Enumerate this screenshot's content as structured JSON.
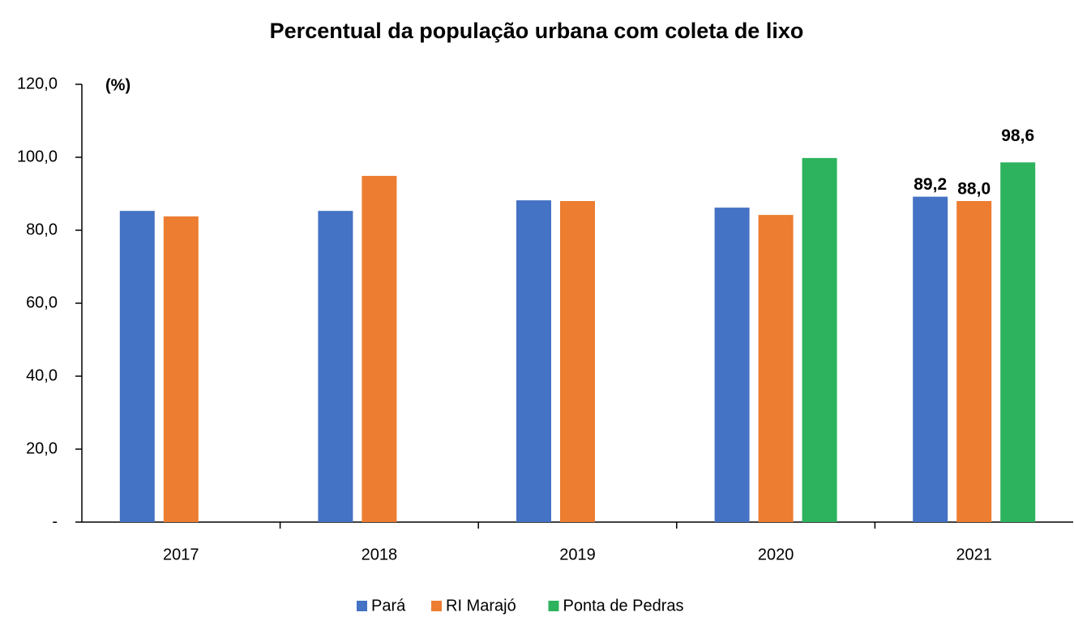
{
  "chart_data": {
    "type": "bar",
    "title": "Percentual da população urbana com coleta de lixo",
    "ylabel": "(%)",
    "categories": [
      "2017",
      "2018",
      "2019",
      "2020",
      "2021"
    ],
    "series": [
      {
        "name": "Pará",
        "color": "#4472c4",
        "values": [
          85.3,
          85.3,
          88.2,
          86.2,
          89.2
        ],
        "value_labels": [
          null,
          null,
          null,
          null,
          "89,2"
        ]
      },
      {
        "name": "RI Marajó",
        "color": "#ed7d31",
        "values": [
          83.8,
          94.9,
          88.0,
          84.2,
          88.0
        ],
        "value_labels": [
          null,
          null,
          null,
          null,
          "88,0"
        ]
      },
      {
        "name": "Ponta de Pedras",
        "color": "#2db35d",
        "values": [
          null,
          null,
          null,
          99.8,
          98.6
        ],
        "value_labels": [
          null,
          null,
          null,
          null,
          "98,6"
        ]
      }
    ],
    "ylim": [
      0,
      120
    ],
    "yticks": [
      {
        "value": 0,
        "label": "-"
      },
      {
        "value": 20,
        "label": "20,0"
      },
      {
        "value": 40,
        "label": "40,0"
      },
      {
        "value": 60,
        "label": "60,0"
      },
      {
        "value": 80,
        "label": "80,0"
      },
      {
        "value": 100,
        "label": "100,0"
      },
      {
        "value": 120,
        "label": "120,0"
      }
    ],
    "grid": false,
    "legend": "bottom"
  }
}
